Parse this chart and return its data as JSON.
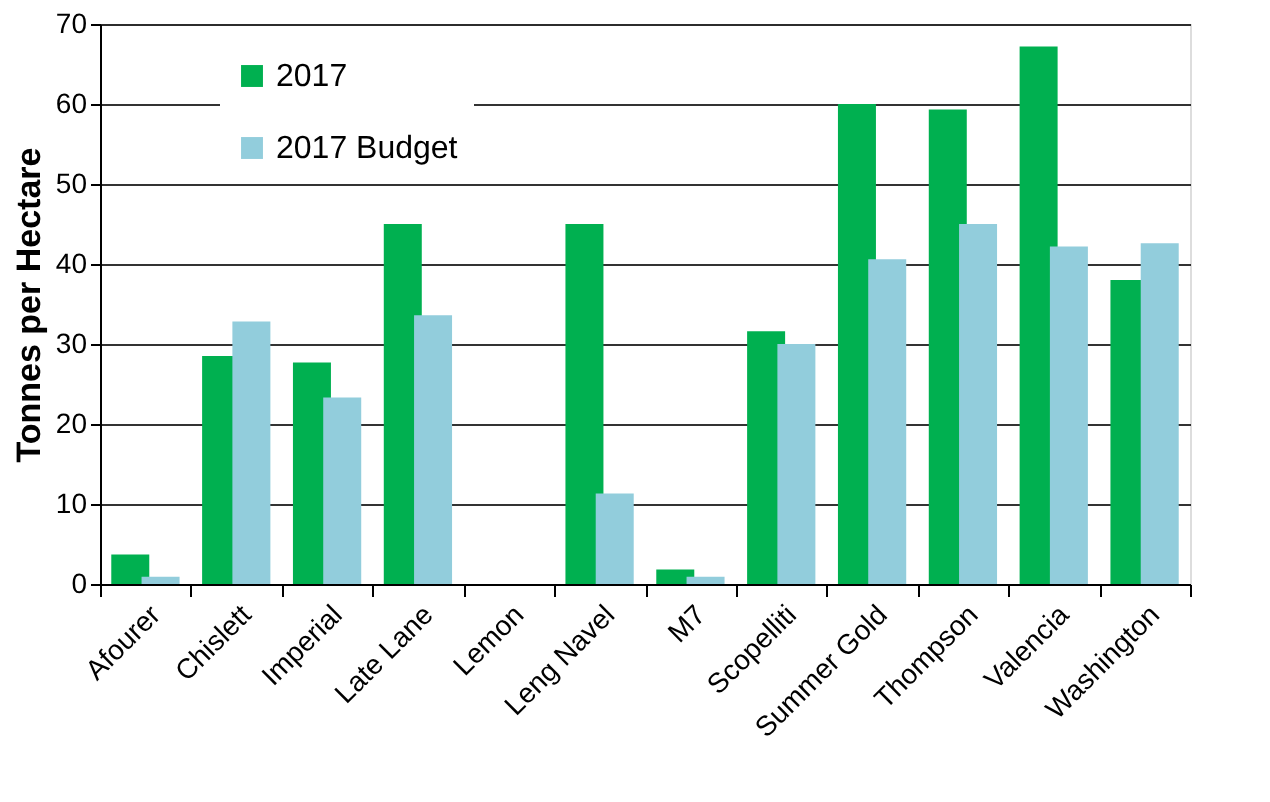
{
  "chart_data": {
    "type": "bar",
    "ylabel": "Tonnes per Hectare",
    "categories": [
      "Afourer",
      "Chislett",
      "Imperial",
      "Late Lane",
      "Lemon",
      "Leng Navel",
      "M7",
      "Scopelliti",
      "Summer Gold",
      "Thompson",
      "Valencia",
      "Washington"
    ],
    "series": [
      {
        "name": "2017",
        "color": "#00b050",
        "values": [
          3.7,
          28.5,
          27.7,
          45,
          null,
          45,
          1.8,
          31.6,
          60,
          59.3,
          67.2,
          38
        ]
      },
      {
        "name": "2017 Budget",
        "color": "#92cddc",
        "values": [
          0.9,
          32.8,
          23.3,
          33.6,
          null,
          11.3,
          0.9,
          30,
          40.6,
          45,
          42.2,
          42.6
        ]
      }
    ],
    "ylim": [
      0,
      70
    ],
    "yticks": [
      0,
      10,
      20,
      30,
      40,
      50,
      60,
      70
    ],
    "grid": "y",
    "legend": "top left"
  }
}
